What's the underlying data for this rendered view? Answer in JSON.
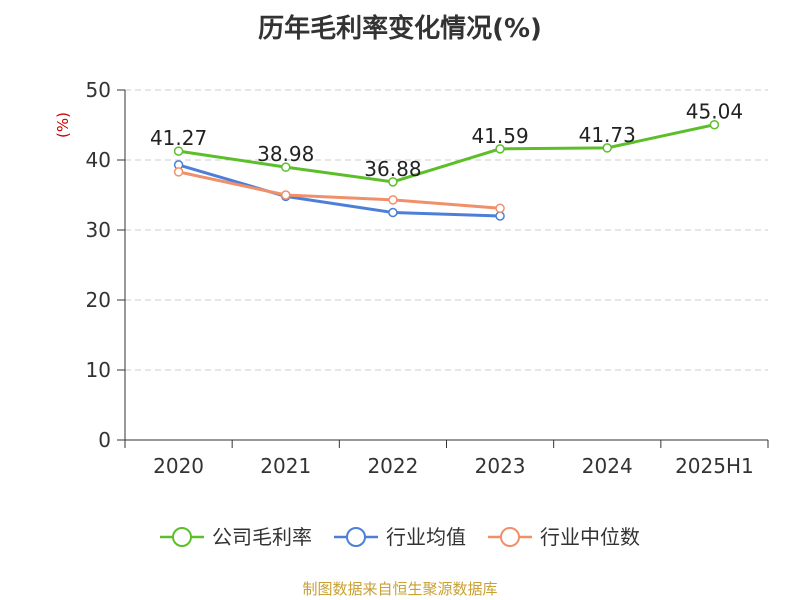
{
  "chart_data": {
    "type": "line",
    "title": "历年毛利率变化情况(%)",
    "ylabel": "(%)",
    "ylim": [
      0,
      50
    ],
    "yticks": [
      0,
      10,
      20,
      30,
      40,
      50
    ],
    "categories": [
      "2020",
      "2021",
      "2022",
      "2023",
      "2024",
      "2025H1"
    ],
    "grid": true,
    "legend_position": "bottom",
    "series": [
      {
        "name": "公司毛利率",
        "color": "#5cbf2a",
        "values": [
          41.27,
          38.98,
          36.88,
          41.59,
          41.73,
          45.04
        ],
        "labels": [
          "41.27",
          "38.98",
          "36.88",
          "41.59",
          "41.73",
          "45.04"
        ]
      },
      {
        "name": "行业均值",
        "color": "#4e7fd8",
        "values": [
          39.3,
          34.8,
          32.5,
          32.0,
          null,
          null
        ]
      },
      {
        "name": "行业中位数",
        "color": "#f0906a",
        "values": [
          38.3,
          35.0,
          34.3,
          33.1,
          null,
          null
        ]
      }
    ]
  },
  "source_note": "制图数据来自恒生聚源数据库",
  "colors": {
    "axis": "#333333",
    "grid": "#cccccc",
    "ylabel": "#cc0000",
    "source": "#c8a033"
  }
}
